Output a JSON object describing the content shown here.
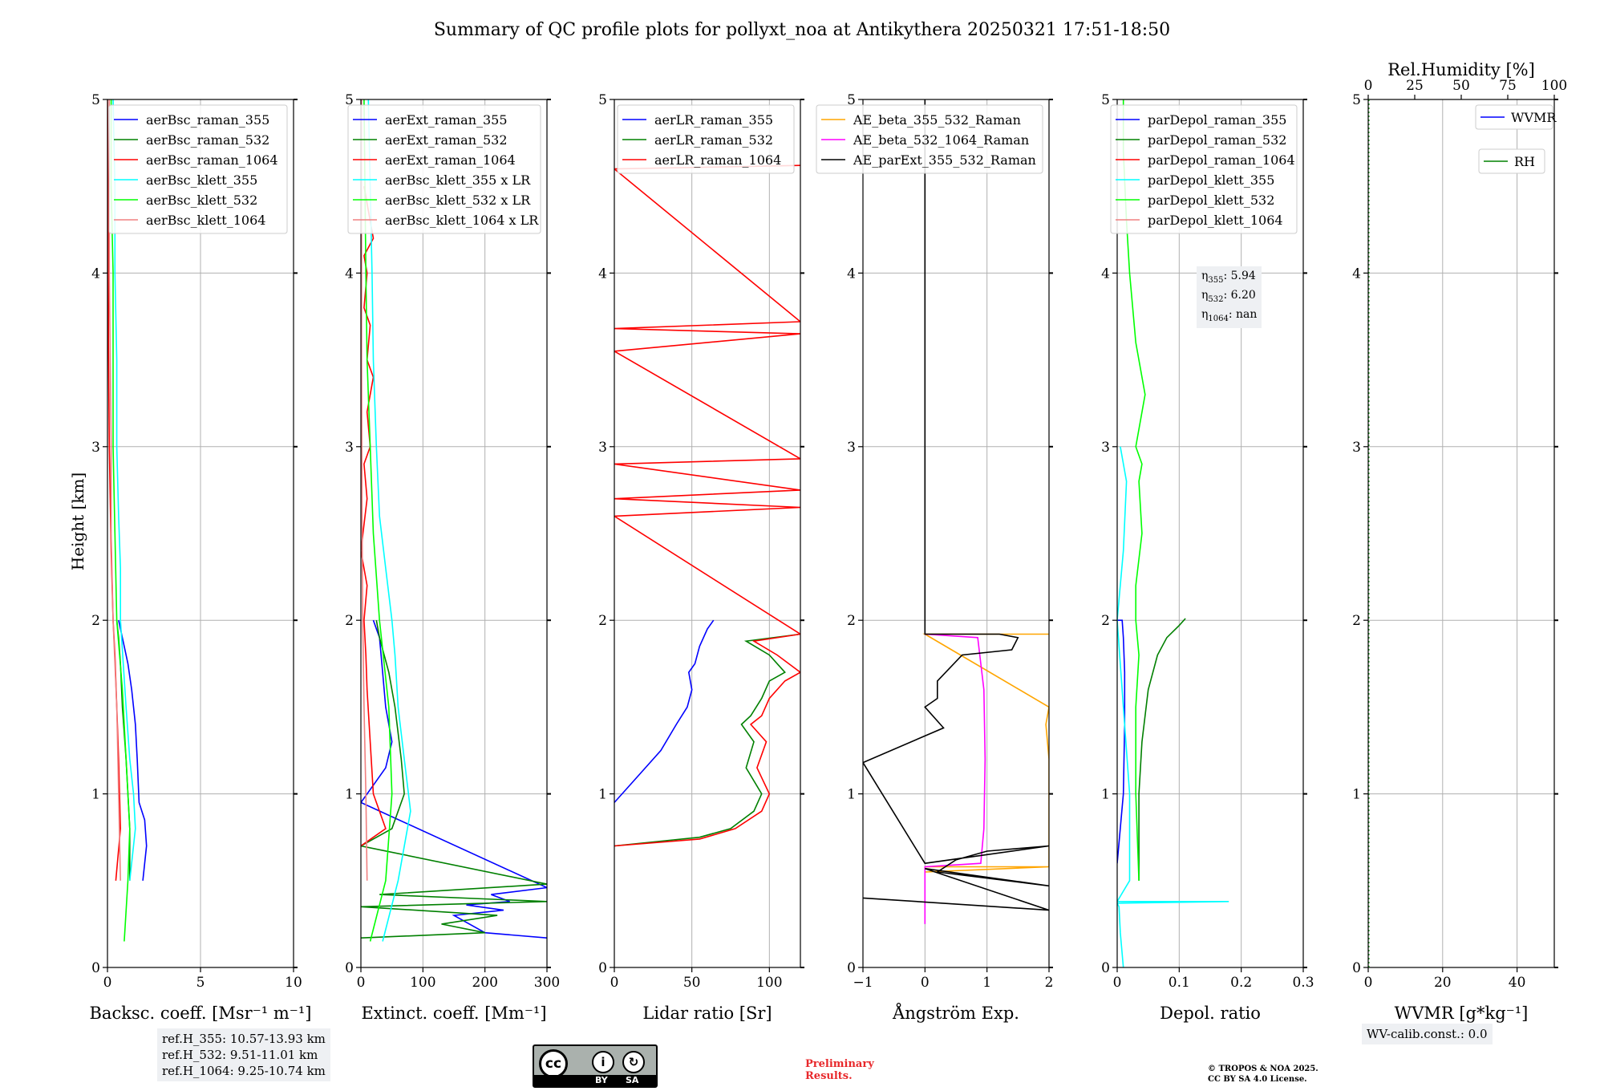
{
  "title": "Summary of QC profile plots for pollyxt_noa at Antikythera 20250321 17:51-18:50",
  "ylabel": "Height [km]",
  "yticks": [
    0,
    1,
    2,
    3,
    4,
    5
  ],
  "ylim": [
    0,
    5
  ],
  "refbox": [
    "ref.H_355: 10.57-13.93 km",
    "ref.H_532: 9.51-11.01 km",
    "ref.H_1064: 9.25-10.74 km"
  ],
  "eta": [
    "η355: 5.94",
    "η532: 6.20",
    "η1064: nan"
  ],
  "wvcalib": "WV-calib.const.: 0.0",
  "prelim": [
    "Preliminary",
    "Results."
  ],
  "copyright": [
    "© TROPOS & NOA 2025.",
    "CC BY SA 4.0 License."
  ],
  "license_badge": {
    "text": "cc",
    "labels": [
      "BY",
      "SA"
    ]
  },
  "colors": {
    "blue": "#0000ff",
    "green": "#008000",
    "red": "#ff0000",
    "cyan": "#00ffff",
    "lime": "#00ff00",
    "pink": "#f08080",
    "orange": "#ffa500",
    "magenta": "#ff00ff",
    "black": "#000000"
  },
  "chart_data": [
    {
      "type": "line",
      "xlabel": "Backsc. coeff. [Msr⁻¹ m⁻¹]",
      "xlim": [
        0,
        10
      ],
      "xticks": [
        0,
        5,
        10
      ],
      "ylim": [
        0,
        5
      ],
      "legend": "top-right",
      "grid": true,
      "series": [
        {
          "name": "aerBsc_raman_355",
          "color": "blue",
          "x": [
            1.9,
            2.1,
            2.0,
            1.7,
            1.6,
            1.5,
            1.3,
            1.1,
            0.9,
            0.7,
            0.6
          ],
          "y": [
            0.5,
            0.7,
            0.85,
            0.95,
            1.2,
            1.4,
            1.6,
            1.75,
            1.85,
            1.95,
            2.0
          ]
        },
        {
          "name": "aerBsc_raman_532",
          "color": "green",
          "x": [
            1.2,
            1.2,
            1.0,
            0.8,
            0.7,
            0.6,
            0.5
          ],
          "y": [
            0.5,
            0.8,
            1.2,
            1.5,
            1.75,
            1.9,
            2.0
          ]
        },
        {
          "name": "aerBsc_raman_1064",
          "color": "red",
          "x": [
            0.45,
            0.7,
            0.6,
            0.5,
            0.4,
            0.3,
            0.2,
            0.1,
            0.05,
            0.05,
            0.0
          ],
          "y": [
            0.5,
            0.8,
            1.2,
            1.5,
            1.8,
            2.0,
            2.4,
            3.0,
            3.6,
            4.2,
            5.0
          ]
        },
        {
          "name": "aerBsc_klett_355",
          "color": "cyan",
          "x": [
            1.2,
            1.5,
            1.4,
            1.2,
            1.0,
            0.7,
            0.7,
            0.6,
            0.5,
            0.5,
            0.4,
            0.4,
            0.3
          ],
          "y": [
            0.5,
            0.8,
            1.0,
            1.2,
            1.5,
            2.0,
            2.3,
            2.6,
            3.0,
            3.5,
            4.0,
            4.5,
            5.0
          ]
        },
        {
          "name": "aerBsc_klett_532",
          "color": "lime",
          "x": [
            0.9,
            1.1,
            1.2,
            1.0,
            0.8,
            0.5,
            0.4,
            0.3,
            0.3,
            0.3,
            0.2,
            0.2
          ],
          "y": [
            0.15,
            0.5,
            0.8,
            1.2,
            1.6,
            2.0,
            2.5,
            3.0,
            3.5,
            4.0,
            4.5,
            5.0
          ]
        },
        {
          "name": "aerBsc_klett_1064",
          "color": "pink",
          "x": [
            0.7,
            0.6,
            0.5,
            0.3,
            0.2,
            0.2,
            0.1,
            0.1
          ],
          "y": [
            0.5,
            1.0,
            1.5,
            2.0,
            2.5,
            3.0,
            4.0,
            5.0
          ]
        }
      ]
    },
    {
      "type": "line",
      "xlabel": "Extinct. coeff. [Mm⁻¹]",
      "xlim": [
        0,
        300
      ],
      "xticks": [
        0,
        100,
        200,
        300
      ],
      "ylim": [
        0,
        5
      ],
      "legend": "top-right",
      "grid": true,
      "series": [
        {
          "name": "aerExt_raman_355",
          "color": "blue",
          "x": [
            300,
            200,
            150,
            230,
            170,
            240,
            210,
            300,
            0,
            20,
            40,
            50,
            40,
            35,
            30,
            20
          ],
          "y": [
            0.17,
            0.2,
            0.3,
            0.33,
            0.36,
            0.38,
            0.42,
            0.46,
            0.95,
            1.05,
            1.15,
            1.3,
            1.5,
            1.7,
            1.9,
            2.0
          ]
        },
        {
          "name": "aerExt_raman_532",
          "color": "green",
          "x": [
            0,
            200,
            130,
            220,
            0,
            300,
            30,
            300,
            0,
            50,
            70,
            65,
            55,
            45,
            30,
            25
          ],
          "y": [
            0.17,
            0.2,
            0.25,
            0.3,
            0.35,
            0.38,
            0.42,
            0.48,
            0.7,
            0.8,
            1.0,
            1.2,
            1.5,
            1.7,
            1.9,
            2.0
          ]
        },
        {
          "name": "aerExt_raman_1064",
          "color": "red",
          "x": [
            0,
            40,
            20,
            15,
            10,
            8,
            5,
            10,
            0,
            10,
            5,
            15,
            10,
            20,
            10,
            15,
            5,
            10,
            5,
            20,
            15,
            5
          ],
          "y": [
            0.7,
            0.8,
            1.0,
            1.3,
            1.6,
            1.8,
            2.0,
            2.2,
            2.4,
            2.7,
            2.9,
            3.0,
            3.2,
            3.4,
            3.5,
            3.7,
            3.8,
            4.0,
            4.1,
            4.2,
            4.3,
            4.5
          ]
        },
        {
          "name": "aerBsc_klett_355 x LR",
          "color": "cyan",
          "x": [
            35,
            60,
            80,
            70,
            60,
            55,
            50,
            40,
            30,
            25,
            20,
            18,
            15,
            12
          ],
          "y": [
            0.15,
            0.5,
            0.9,
            1.2,
            1.5,
            1.8,
            2.0,
            2.3,
            2.6,
            3.0,
            3.5,
            4.0,
            4.5,
            5.0
          ]
        },
        {
          "name": "aerBsc_klett_532 x LR",
          "color": "lime",
          "x": [
            15,
            40,
            50,
            45,
            30,
            20,
            15,
            10,
            8,
            5
          ],
          "y": [
            0.15,
            0.5,
            1.0,
            1.5,
            2.0,
            2.5,
            3.0,
            3.5,
            4.0,
            5.0
          ]
        },
        {
          "name": "aerBsc_klett_1064 x LR",
          "color": "pink",
          "x": [
            10,
            8,
            5,
            3,
            2,
            1,
            1
          ],
          "y": [
            0.5,
            1.0,
            1.5,
            2.0,
            2.5,
            3.5,
            5.0
          ]
        }
      ]
    },
    {
      "type": "line",
      "xlabel": "Lidar ratio [Sr]",
      "xlim": [
        0,
        120
      ],
      "xticks": [
        0,
        50,
        100
      ],
      "ylim": [
        0,
        5
      ],
      "legend": "top-right",
      "grid": true,
      "series": [
        {
          "name": "aerLR_raman_355",
          "color": "blue",
          "x": [
            0,
            15,
            30,
            40,
            47,
            50,
            48,
            52,
            55,
            60,
            64
          ],
          "y": [
            0.95,
            1.1,
            1.25,
            1.4,
            1.5,
            1.6,
            1.7,
            1.75,
            1.85,
            1.95,
            2.0
          ]
        },
        {
          "name": "aerLR_raman_532",
          "color": "green",
          "x": [
            0,
            55,
            75,
            90,
            95,
            85,
            90,
            82,
            88,
            95,
            100,
            110,
            100,
            85,
            120
          ],
          "y": [
            0.7,
            0.75,
            0.8,
            0.9,
            1.0,
            1.15,
            1.3,
            1.4,
            1.45,
            1.55,
            1.65,
            1.7,
            1.8,
            1.88,
            1.92
          ]
        },
        {
          "name": "aerLR_raman_1064",
          "color": "red",
          "x": [
            0,
            55,
            78,
            95,
            100,
            92,
            98,
            88,
            95,
            100,
            110,
            120,
            105,
            90,
            120,
            0,
            120,
            0,
            120,
            0,
            120,
            0,
            120,
            0,
            120,
            0,
            120
          ],
          "y": [
            0.7,
            0.74,
            0.8,
            0.9,
            1.0,
            1.15,
            1.3,
            1.4,
            1.45,
            1.55,
            1.65,
            1.7,
            1.8,
            1.88,
            1.92,
            2.6,
            2.65,
            2.7,
            2.75,
            2.9,
            2.93,
            3.55,
            3.65,
            3.68,
            3.72,
            4.6,
            4.62
          ]
        }
      ]
    },
    {
      "type": "line",
      "xlabel": "Ångström Exp.",
      "xlim": [
        -1,
        2
      ],
      "xticks": [
        -1,
        0,
        1,
        2
      ],
      "ylim": [
        0,
        5
      ],
      "legend": "top-right",
      "grid": true,
      "series": [
        {
          "name": "AE_beta_355_532_Raman",
          "color": "orange",
          "x": [
            0,
            2,
            0,
            0,
            2,
            2,
            1.95,
            2,
            0,
            2
          ],
          "y": [
            0.55,
            0.58,
            0.58,
            0.58,
            0.58,
            1.2,
            1.4,
            1.5,
            1.92,
            1.92
          ]
        },
        {
          "name": "AE_beta_532_1064_Raman",
          "color": "magenta",
          "x": [
            0,
            0,
            0.9,
            0.95,
            0.97,
            0.95,
            0.85,
            0
          ],
          "y": [
            0.25,
            0.58,
            0.6,
            0.8,
            1.2,
            1.6,
            1.9,
            1.92
          ]
        },
        {
          "name": "AE_parExt_355_532_Raman",
          "color": "black",
          "x": [
            -1,
            2,
            0,
            2,
            0.2,
            0.5,
            1.0,
            2,
            0,
            -1,
            0.3,
            0.0,
            0.2,
            0.2,
            0.6,
            1.4,
            1.5,
            1.2,
            0,
            0,
            0
          ],
          "y": [
            0.4,
            0.33,
            0.57,
            0.47,
            0.55,
            0.62,
            0.67,
            0.7,
            0.6,
            1.18,
            1.38,
            1.5,
            1.55,
            1.65,
            1.8,
            1.83,
            1.9,
            1.92,
            1.92,
            2.5,
            5.0
          ]
        }
      ]
    },
    {
      "type": "line",
      "xlabel": "Depol. ratio",
      "xlim": [
        0,
        0.3
      ],
      "xticks": [
        0.0,
        0.1,
        0.2,
        0.3
      ],
      "ylim": [
        0,
        5
      ],
      "legend": "top-right",
      "grid": true,
      "series": [
        {
          "name": "parDepol_raman_355",
          "color": "blue",
          "x": [
            0.0,
            0.01,
            0.012,
            0.012,
            0.01,
            0.008,
            0.0
          ],
          "y": [
            0.6,
            1.0,
            1.4,
            1.7,
            1.9,
            2.0,
            2.0
          ]
        },
        {
          "name": "parDepol_raman_532",
          "color": "green",
          "x": [
            0.035,
            0.035,
            0.04,
            0.05,
            0.065,
            0.08,
            0.1,
            0.11
          ],
          "y": [
            0.5,
            1.0,
            1.3,
            1.6,
            1.8,
            1.9,
            1.97,
            2.01
          ]
        },
        {
          "name": "parDepol_raman_1064",
          "color": "red",
          "x": [],
          "y": []
        },
        {
          "name": "parDepol_klett_355",
          "color": "cyan",
          "x": [
            0.01,
            0.005,
            0.003,
            0.0,
            0.18,
            0.0,
            0.02,
            0.02,
            0.01,
            0.0,
            0.01,
            0.015,
            0.005
          ],
          "y": [
            0.0,
            0.2,
            0.35,
            0.37,
            0.38,
            0.38,
            0.5,
            1.0,
            1.5,
            2.0,
            2.4,
            2.8,
            3.0
          ]
        },
        {
          "name": "parDepol_klett_532",
          "color": "lime",
          "x": [
            0.035,
            0.03,
            0.03,
            0.035,
            0.03,
            0.03,
            0.04,
            0.035,
            0.04,
            0.03,
            0.045,
            0.03,
            0.02,
            0.015,
            0.01,
            0.01
          ],
          "y": [
            0.5,
            1.0,
            1.5,
            1.8,
            2.0,
            2.2,
            2.5,
            2.8,
            2.9,
            3.0,
            3.3,
            3.6,
            4.0,
            4.3,
            4.7,
            5.0
          ]
        },
        {
          "name": "parDepol_klett_1064",
          "color": "pink",
          "x": [],
          "y": []
        }
      ]
    },
    {
      "type": "line",
      "xlabel": "WVMR [g*kg⁻¹]",
      "x2label": "Rel.Humidity [%]",
      "xlim": [
        0,
        50
      ],
      "xticks": [
        0,
        20,
        40
      ],
      "x2lim": [
        0,
        100
      ],
      "x2ticks": [
        0,
        25,
        50,
        75,
        100
      ],
      "ylim": [
        0,
        5
      ],
      "legend": "top-right",
      "grid": true,
      "series": [
        {
          "name": "WVMR",
          "color": "blue",
          "x": [],
          "y": []
        },
        {
          "name": "RH",
          "color": "green",
          "x": [],
          "y": []
        }
      ]
    }
  ]
}
